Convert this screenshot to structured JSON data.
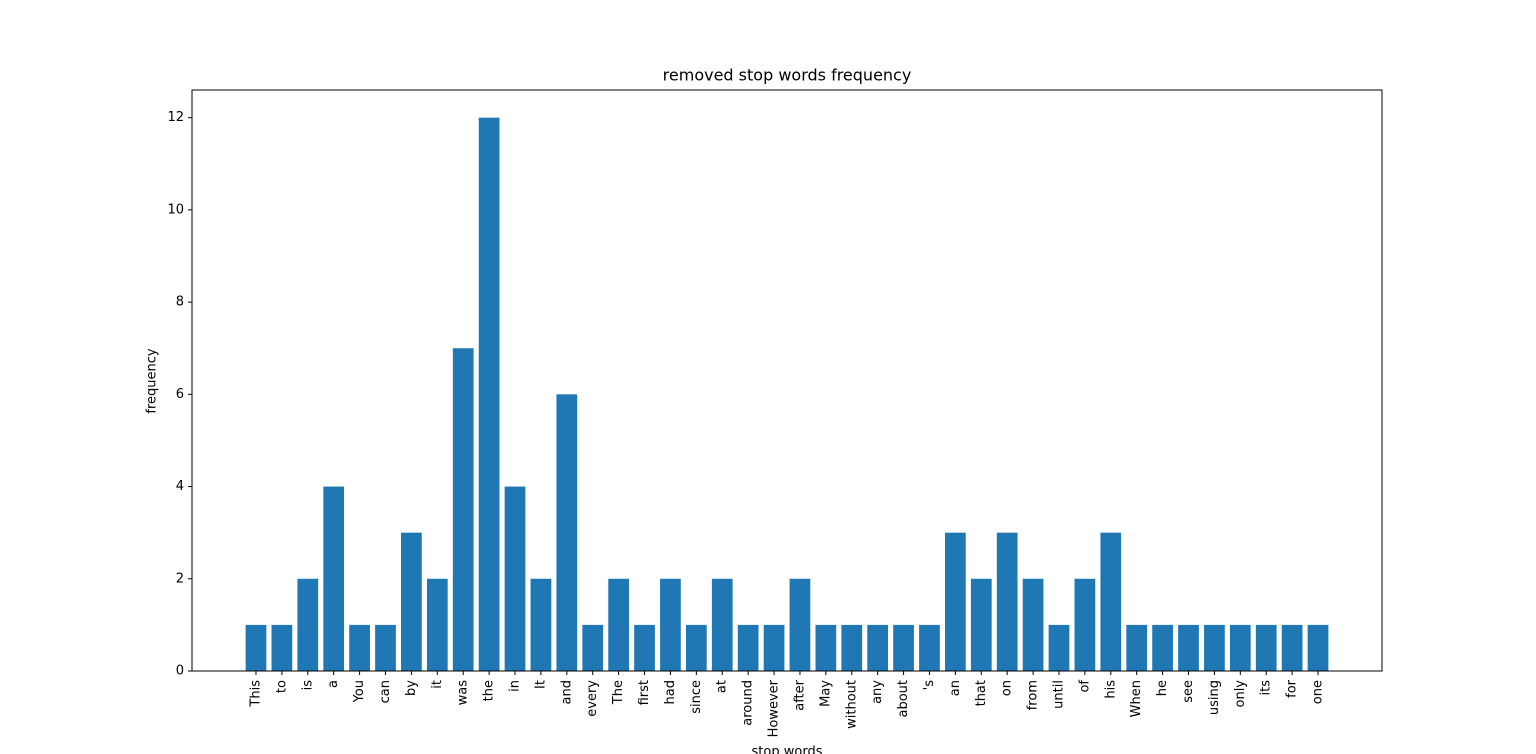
{
  "chart_data": {
    "type": "bar",
    "title": "removed stop words frequency",
    "x_label": "stop words",
    "y_label": "frequency",
    "categories": [
      "This",
      "to",
      "is",
      "a",
      "You",
      "can",
      "by",
      "it",
      "was",
      "the",
      "in",
      "It",
      "and",
      "every",
      "The",
      "first",
      "had",
      "since",
      "at",
      "around",
      "However",
      "after",
      "May",
      "without",
      "any",
      "about",
      "'s",
      "an",
      "that",
      "on",
      "from",
      "until",
      "of",
      "his",
      "When",
      "he",
      "see",
      "using",
      "only",
      "its",
      "for",
      "one"
    ],
    "values": [
      1,
      1,
      2,
      4,
      1,
      1,
      3,
      2,
      7,
      12,
      4,
      2,
      6,
      1,
      2,
      1,
      2,
      1,
      2,
      1,
      1,
      2,
      1,
      1,
      1,
      1,
      1,
      3,
      2,
      3,
      2,
      1,
      2,
      3,
      1,
      1,
      1,
      1,
      1,
      1,
      1,
      1
    ],
    "color": "#1f77b4",
    "ylim": [
      0,
      12.6
    ],
    "yticks": [
      0,
      2,
      4,
      6,
      8,
      10,
      12
    ]
  }
}
